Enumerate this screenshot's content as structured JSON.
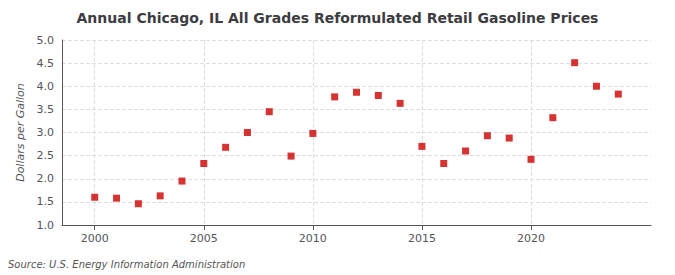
{
  "chart_data": {
    "type": "scatter",
    "title": "Annual Chicago, IL All Grades Reformulated Retail Gasoline Prices",
    "ylabel": "Dollars per Gallon",
    "annotation": "Source: U.S. Energy Information Administration",
    "x": [
      2000,
      2001,
      2002,
      2003,
      2004,
      2005,
      2006,
      2007,
      2008,
      2009,
      2010,
      2011,
      2012,
      2013,
      2014,
      2015,
      2016,
      2017,
      2018,
      2019,
      2020,
      2021,
      2022,
      2023,
      2024
    ],
    "values": [
      1.6,
      1.58,
      1.46,
      1.63,
      1.95,
      2.33,
      2.68,
      3.0,
      3.45,
      2.49,
      2.98,
      3.77,
      3.87,
      3.8,
      3.63,
      2.7,
      2.33,
      2.6,
      2.93,
      2.88,
      2.42,
      3.32,
      4.51,
      4.0,
      3.83
    ],
    "xlim": [
      1998.5,
      2025.5
    ],
    "xticks": [
      2000,
      2005,
      2010,
      2015,
      2020
    ],
    "ylim": [
      1.0,
      5.0
    ],
    "yticks": [
      {
        "value": 1.0,
        "label": "1.0"
      },
      {
        "value": 1.5,
        "label": "1.5"
      },
      {
        "value": 2.0,
        "label": "2.0"
      },
      {
        "value": 2.5,
        "label": "2.5"
      },
      {
        "value": 3.0,
        "label": "3.0"
      },
      {
        "value": 3.5,
        "label": "3.5"
      },
      {
        "value": 4.0,
        "label": "4.0"
      },
      {
        "value": 4.5,
        "label": "4.5"
      },
      {
        "value": 5.0,
        "label": "5.0"
      }
    ],
    "color": "#cc0000",
    "marker": "square",
    "grid": true
  }
}
